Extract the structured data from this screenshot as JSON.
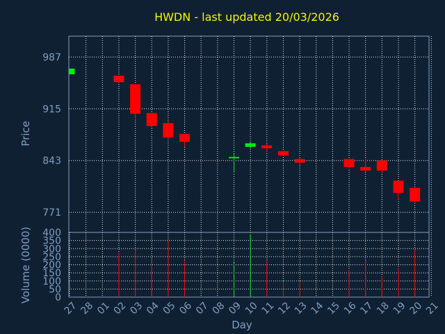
{
  "chart_data": [
    {
      "type": "candlestick",
      "title": "HWDN - last updated 20/03/2026",
      "ylabel": "Price",
      "ylim": [
        743,
        1016
      ],
      "yticks": [
        771,
        843,
        915,
        987
      ],
      "up_color": "#00ee00",
      "down_color": "#ff0000",
      "candles": [
        {
          "x": "27",
          "open": 963,
          "close": 971,
          "high": 971,
          "low": 963
        },
        {
          "x": "02",
          "open": 961,
          "close": 952,
          "high": 961,
          "low": 950
        },
        {
          "x": "03",
          "open": 949,
          "close": 908,
          "high": 949,
          "low": 902
        },
        {
          "x": "04",
          "open": 909,
          "close": 891,
          "high": 909,
          "low": 889
        },
        {
          "x": "05",
          "open": 895,
          "close": 875,
          "high": 899,
          "low": 873
        },
        {
          "x": "06",
          "open": 880,
          "close": 869,
          "high": 880,
          "low": 862
        },
        {
          "x": "09",
          "open": 847,
          "close": 848,
          "high": 852,
          "low": 826
        },
        {
          "x": "10",
          "open": 862,
          "close": 867,
          "high": 869,
          "low": 860
        },
        {
          "x": "11",
          "open": 864,
          "close": 860,
          "high": 867,
          "low": 855
        },
        {
          "x": "12",
          "open": 856,
          "close": 850,
          "high": 857,
          "low": 849
        },
        {
          "x": "13",
          "open": 845,
          "close": 840,
          "high": 846,
          "low": 836
        },
        {
          "x": "16",
          "open": 845,
          "close": 834,
          "high": 845,
          "low": 832
        },
        {
          "x": "17",
          "open": 834,
          "close": 829,
          "high": 845,
          "low": 828
        },
        {
          "x": "18",
          "open": 843,
          "close": 829,
          "high": 843,
          "low": 825
        },
        {
          "x": "19",
          "open": 815,
          "close": 798,
          "high": 815,
          "low": 789
        },
        {
          "x": "20",
          "open": 805,
          "close": 786,
          "high": 805,
          "low": 783
        }
      ]
    },
    {
      "type": "bar",
      "ylabel": "Volume (0000)",
      "xlabel": "Day",
      "ylim": [
        0,
        400
      ],
      "yticks": [
        0,
        50,
        100,
        150,
        200,
        250,
        300,
        350,
        400
      ],
      "categories": [
        "27",
        "28",
        "01",
        "02",
        "03",
        "04",
        "05",
        "06",
        "07",
        "08",
        "09",
        "10",
        "11",
        "12",
        "13",
        "14",
        "15",
        "16",
        "17",
        "18",
        "19",
        "20",
        "21"
      ],
      "bars": [
        {
          "x": "02",
          "value": 275,
          "color": "#ff0000"
        },
        {
          "x": "03",
          "value": 295,
          "color": "#ff0000"
        },
        {
          "x": "04",
          "value": 195,
          "color": "#ff0000"
        },
        {
          "x": "05",
          "value": 350,
          "color": "#ff0000"
        },
        {
          "x": "06",
          "value": 225,
          "color": "#ff0000"
        },
        {
          "x": "09",
          "value": 215,
          "color": "#00ee00"
        },
        {
          "x": "10",
          "value": 385,
          "color": "#00ee00"
        },
        {
          "x": "11",
          "value": 225,
          "color": "#ff0000"
        },
        {
          "x": "12",
          "value": 100,
          "color": "#ff0000"
        },
        {
          "x": "13",
          "value": 100,
          "color": "#ff0000"
        },
        {
          "x": "16",
          "value": 170,
          "color": "#ff0000"
        },
        {
          "x": "17",
          "value": 230,
          "color": "#ff0000"
        },
        {
          "x": "18",
          "value": 130,
          "color": "#ff0000"
        },
        {
          "x": "19",
          "value": 180,
          "color": "#ff0000"
        },
        {
          "x": "20",
          "value": 295,
          "color": "#ff0000"
        }
      ]
    }
  ]
}
